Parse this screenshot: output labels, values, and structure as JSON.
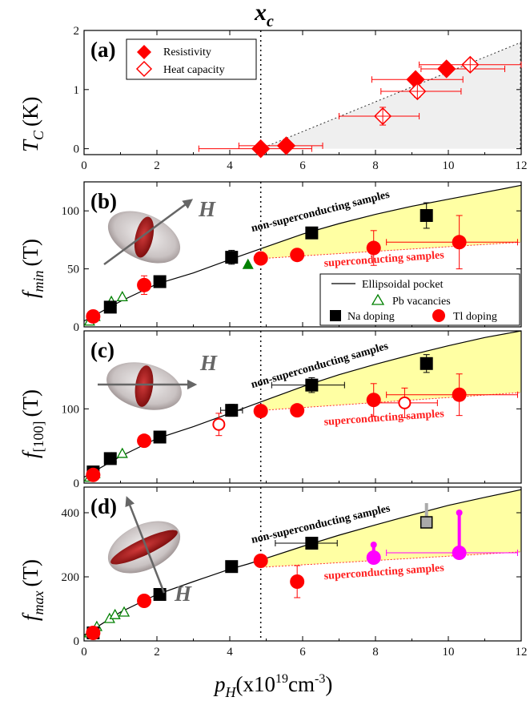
{
  "chart_data": [
    {
      "panel": "(a)",
      "type": "scatter",
      "ylabel_main": "T",
      "ylabel_sub": "C",
      "ylabel_unit": "(K)",
      "top_label_main": "x",
      "top_label_sub": "c",
      "xlim": [
        0,
        12
      ],
      "ylim": [
        -0.1,
        2.0
      ],
      "xticks": [
        0,
        2,
        4,
        6,
        8,
        10,
        12
      ],
      "yticks": [
        0,
        1,
        2
      ],
      "xc": 4.85,
      "shade_line": {
        "x": [
          4.85,
          12
        ],
        "y": [
          0,
          1.8
        ]
      },
      "legend": {
        "position": "top-left",
        "items": [
          "Resistivity",
          "Heat capacity"
        ]
      },
      "series": [
        {
          "name": "Resistivity",
          "marker": "diamond-filled",
          "color": "#ff0000",
          "points": [
            {
              "x": 4.85,
              "y": 0.0,
              "xerr_lo": 1.7,
              "xerr_hi": 1.4,
              "yerr": 0
            },
            {
              "x": 5.55,
              "y": 0.05,
              "xerr_lo": 1.3,
              "xerr_hi": 1.0,
              "yerr": 0
            },
            {
              "x": 9.1,
              "y": 1.17,
              "xerr_lo": 1.2,
              "xerr_hi": 1.3,
              "yerr": 0.05
            },
            {
              "x": 9.95,
              "y": 1.35,
              "xerr_lo": 0.7,
              "xerr_hi": 1.6,
              "yerr": 0.05
            }
          ]
        },
        {
          "name": "Heat capacity",
          "marker": "diamond-open",
          "color": "#ff0000",
          "points": [
            {
              "x": 8.2,
              "y": 0.55,
              "xerr_lo": 1.2,
              "xerr_hi": 1.0,
              "yerr": 0.15
            },
            {
              "x": 9.15,
              "y": 0.97,
              "xerr_lo": 1.0,
              "xerr_hi": 1.2,
              "yerr": 0.1
            },
            {
              "x": 10.6,
              "y": 1.42,
              "xerr_lo": 1.4,
              "xerr_hi": 1.4,
              "yerr": 0.08
            }
          ]
        }
      ]
    },
    {
      "panel": "(b)",
      "type": "scatter",
      "ylabel_main": "f",
      "ylabel_sub": "min",
      "ylabel_unit": "(T)",
      "field_label": "H",
      "xlim": [
        0,
        12
      ],
      "ylim": [
        0,
        125
      ],
      "yticks": [
        0,
        50,
        100
      ],
      "curve": {
        "name": "Ellipsoidal pocket",
        "x": [
          0,
          1,
          2,
          3,
          4,
          4.5,
          5,
          6,
          7,
          8,
          9,
          10,
          11,
          12
        ],
        "y": [
          5,
          22,
          37,
          46.5,
          58,
          63.5,
          69,
          80,
          89,
          97,
          104,
          110,
          116,
          122
        ]
      },
      "band": {
        "x": [
          4.9,
          12
        ],
        "y_lower": [
          59,
          73
        ],
        "y_upper": [
          69,
          122
        ]
      },
      "annotations": {
        "upper": "non-superconducting samples",
        "lower": "superconducting samples"
      },
      "legend": {
        "position": "bottom-right",
        "items": [
          "Ellipsoidal pocket",
          "Pb vacancies",
          "Na doping",
          "Tl doping"
        ]
      },
      "series": [
        {
          "name": "Pb vacancies",
          "marker": "triangle-open",
          "color": "#008000",
          "points": [
            {
              "x": 0.15,
              "y": 5
            },
            {
              "x": 0.3,
              "y": 9
            },
            {
              "x": 0.75,
              "y": 22
            },
            {
              "x": 1.05,
              "y": 26
            }
          ]
        },
        {
          "name": "Pb vacancies (filled)",
          "marker": "triangle-filled",
          "color": "#008000",
          "points": [
            {
              "x": 4.5,
              "y": 54
            }
          ]
        },
        {
          "name": "Na doping",
          "marker": "square",
          "color": "#000000",
          "points": [
            {
              "x": 0.72,
              "y": 17,
              "yerr": 2
            },
            {
              "x": 2.08,
              "y": 39,
              "yerr": 2
            },
            {
              "x": 4.05,
              "y": 60,
              "yerr": 6
            },
            {
              "x": 6.25,
              "y": 81,
              "yerr": 4
            },
            {
              "x": 9.4,
              "y": 96,
              "yerr": 11
            }
          ]
        },
        {
          "name": "Tl doping",
          "marker": "circle",
          "color": "#ff0000",
          "points": [
            {
              "x": 0.25,
              "y": 9,
              "yerr": 2
            },
            {
              "x": 1.65,
              "y": 36,
              "yerr": 8
            },
            {
              "x": 4.85,
              "y": 59,
              "yerr": 4
            },
            {
              "x": 5.85,
              "y": 62,
              "yerr": 5
            },
            {
              "x": 7.95,
              "y": 68,
              "yerr": 15
            },
            {
              "x": 10.3,
              "y": 73,
              "yerr": 23,
              "xerr_lo": 2,
              "xerr_hi": 1.6
            }
          ]
        }
      ]
    },
    {
      "panel": "(c)",
      "type": "scatter",
      "ylabel_main": "f",
      "ylabel_sub": "[100]",
      "ylabel_unit": "(T)",
      "field_label": "H",
      "xlim": [
        0,
        12
      ],
      "ylim": [
        0,
        205
      ],
      "yticks": [
        0,
        100
      ],
      "curve": {
        "x": [
          0,
          1,
          2,
          3,
          4,
          4.5,
          5,
          6,
          7,
          8,
          9,
          10,
          11,
          12
        ],
        "y": [
          8,
          36,
          60,
          76,
          94,
          103,
          112,
          130,
          146,
          160,
          173,
          185,
          196,
          205
        ]
      },
      "band": {
        "x": [
          4.9,
          12
        ],
        "y_lower": [
          98,
          122
        ],
        "y_upper": [
          111,
          205
        ]
      },
      "annotations": {
        "upper": "non-superconducting samples",
        "lower": "superconducting samples"
      },
      "series": [
        {
          "name": "Pb vacancies",
          "marker": "triangle-open",
          "color": "#008000",
          "points": [
            {
              "x": 0.15,
              "y": 8
            },
            {
              "x": 0.3,
              "y": 13
            },
            {
              "x": 0.75,
              "y": 34
            },
            {
              "x": 1.05,
              "y": 40
            }
          ]
        },
        {
          "name": "Na doping",
          "marker": "square",
          "color": "#000000",
          "points": [
            {
              "x": 0.25,
              "y": 15,
              "yerr": 2
            },
            {
              "x": 0.72,
              "y": 33,
              "yerr": 2
            },
            {
              "x": 2.08,
              "y": 62,
              "yerr": 3
            },
            {
              "x": 4.05,
              "y": 98,
              "yerr": 8,
              "xerr_lo": 0.3,
              "xerr_hi": 0.3
            },
            {
              "x": 6.25,
              "y": 132,
              "yerr": 10,
              "xerr_lo": 1.1,
              "xerr_hi": 0.9
            },
            {
              "x": 9.4,
              "y": 161,
              "yerr": 12
            }
          ]
        },
        {
          "name": "Tl doping",
          "marker": "circle",
          "color": "#ff0000",
          "points": [
            {
              "x": 0.25,
              "y": 11,
              "yerr": 2
            },
            {
              "x": 1.65,
              "y": 57,
              "yerr": 4
            },
            {
              "x": 4.85,
              "y": 97,
              "yerr": 7
            },
            {
              "x": 5.85,
              "y": 98,
              "yerr": 7
            },
            {
              "x": 7.95,
              "y": 112,
              "yerr": 22
            },
            {
              "x": 10.3,
              "y": 119,
              "yerr": 28,
              "xerr_lo": 2,
              "xerr_hi": 1.6
            }
          ]
        },
        {
          "name": "Tl doping (open)",
          "marker": "circle-open",
          "color": "#ff0000",
          "points": [
            {
              "x": 3.7,
              "y": 79,
              "yerr": 15
            },
            {
              "x": 8.8,
              "y": 108,
              "yerr": 20,
              "xerr_lo": 0.9,
              "xerr_hi": 0.9
            }
          ]
        }
      ]
    },
    {
      "panel": "(d)",
      "type": "scatter",
      "ylabel_main": "f",
      "ylabel_sub": "max",
      "ylabel_unit": "(T)",
      "field_label": "H",
      "xlabel_main": "p",
      "xlabel_sub": "H",
      "xlabel_unit": "(x10",
      "xlabel_exp": "19",
      "xlabel_unit2": "cm",
      "xlabel_exp2": "-3",
      "xlabel_close": ")",
      "xlim": [
        0,
        12
      ],
      "ylim": [
        0,
        480
      ],
      "xticks": [
        0,
        2,
        4,
        6,
        8,
        10,
        12
      ],
      "yticks": [
        0,
        200,
        400
      ],
      "curve": {
        "x": [
          0,
          1,
          2,
          3,
          4,
          4.5,
          5,
          6,
          7,
          8,
          9,
          10,
          11,
          12
        ],
        "y": [
          18,
          90,
          145,
          185,
          224,
          240,
          258,
          295,
          330,
          362,
          393,
          423,
          448,
          472
        ]
      },
      "band": {
        "x": [
          4.9,
          12
        ],
        "y_lower": [
          230,
          278
        ],
        "y_upper": [
          258,
          472
        ]
      },
      "annotations": {
        "upper": "non-superconducting samples",
        "lower": "superconducting samples"
      },
      "series": [
        {
          "name": "Pb vacancies",
          "marker": "triangle-open",
          "color": "#008000",
          "points": [
            {
              "x": 0.15,
              "y": 25
            },
            {
              "x": 0.35,
              "y": 45
            },
            {
              "x": 0.7,
              "y": 70
            },
            {
              "x": 0.85,
              "y": 82
            },
            {
              "x": 1.1,
              "y": 90
            }
          ]
        },
        {
          "name": "Na doping",
          "marker": "square",
          "color": "#000000",
          "points": [
            {
              "x": 0.25,
              "y": 25,
              "yerr": 4
            },
            {
              "x": 2.08,
              "y": 145,
              "yerr": 6
            },
            {
              "x": 4.05,
              "y": 232,
              "yerr": 6
            },
            {
              "x": 6.25,
              "y": 305,
              "yerr": 12,
              "xerr_lo": 1,
              "xerr_hi": 0.7
            }
          ]
        },
        {
          "name": "Na doping (grey)",
          "marker": "square-grey",
          "color": "#aaaaaa",
          "points": [
            {
              "x": 9.4,
              "y": 370,
              "yerr": 0,
              "bar_to": 430
            }
          ]
        },
        {
          "name": "Tl doping",
          "marker": "circle",
          "color": "#ff0000",
          "points": [
            {
              "x": 0.25,
              "y": 25,
              "yerr": 4
            },
            {
              "x": 1.65,
              "y": 125,
              "yerr": 6
            },
            {
              "x": 4.85,
              "y": 250,
              "yerr": 8
            },
            {
              "x": 5.85,
              "y": 185,
              "yerr": 50
            }
          ]
        },
        {
          "name": "Tl doping (magenta)",
          "marker": "circle-magenta",
          "color": "#ff00ff",
          "points": [
            {
              "x": 7.95,
              "y": 260,
              "bar_to": 300
            },
            {
              "x": 10.3,
              "y": 275,
              "bar_to": 400,
              "xerr_lo": 2,
              "xerr_hi": 1.6
            }
          ]
        }
      ]
    }
  ]
}
